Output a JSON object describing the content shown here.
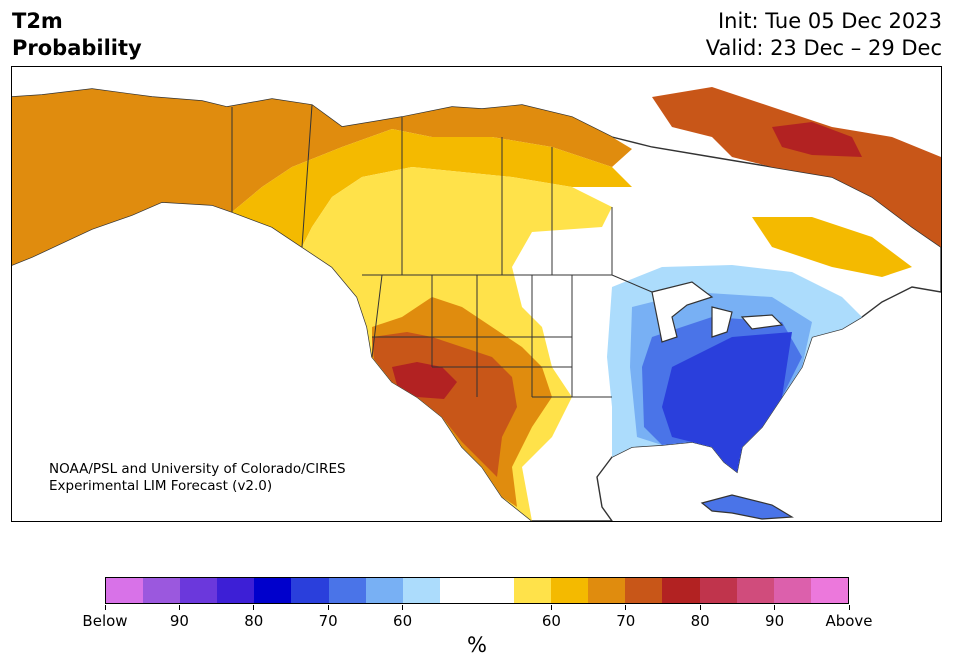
{
  "title": {
    "left_line1": "T2m",
    "left_line2": "Probability",
    "init": "Init: Tue 05 Dec 2023",
    "valid": "Valid: 23 Dec – 29 Dec"
  },
  "credit": {
    "line1": "NOAA/PSL and University of Colorado/CIRES",
    "line2": "Experimental LIM Forecast (v2.0)"
  },
  "colorbar": {
    "colors": [
      "#d872e8",
      "#9b58de",
      "#6b38dc",
      "#3d1fd6",
      "#0000cc",
      "#2a3fdc",
      "#4a74e8",
      "#78b0f4",
      "#acdcfc",
      "#ffffff",
      "#ffffff",
      "#ffe24a",
      "#f4ba00",
      "#e08c0e",
      "#c85618",
      "#b22222",
      "#c0344c",
      "#d04c7c",
      "#dc60ac",
      "#ec78dc"
    ],
    "tick_labels": [
      "Below",
      "90",
      "80",
      "70",
      "60",
      "60",
      "70",
      "80",
      "90",
      "Above"
    ],
    "unit": "%"
  },
  "map": {
    "region": "North America",
    "legend_colors": {
      "above_60": "#ffe24a",
      "above_65": "#f4ba00",
      "above_70": "#e08c0e",
      "above_75": "#c85618",
      "above_80": "#b22222",
      "below_60": "#acdcfc",
      "below_65": "#78b0f4",
      "below_70": "#4a74e8",
      "below_75": "#2a3fdc"
    }
  }
}
